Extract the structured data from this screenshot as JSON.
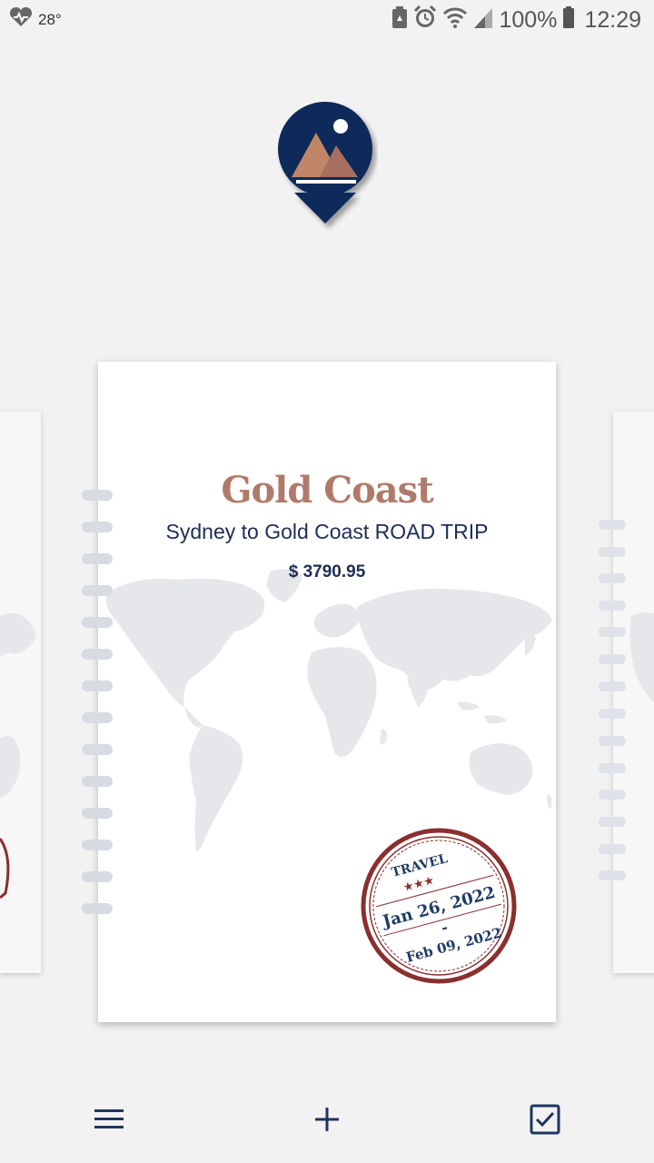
{
  "status_bar": {
    "temperature": "28°",
    "battery": "100%",
    "time": "12:29",
    "icons": [
      "heart-rate-icon",
      "recycle-icon",
      "alarm-icon",
      "wifi-icon",
      "signal-icon",
      "battery-icon"
    ]
  },
  "app": {
    "logo_icon": "mountain-pin-logo-icon",
    "brand_color": "#0f2b5a",
    "accent_color": "#b07a6a"
  },
  "trip_card": {
    "title": "Gold Coast",
    "subtitle": "Sydney to Gold Coast ROAD TRIP",
    "price": "$ 3790.95",
    "stamp": {
      "label": "TRAVEL",
      "start_date": "Jan 26, 2022",
      "separator": "-",
      "end_date": "Feb 09, 2022"
    }
  },
  "bottom_nav": {
    "menu_icon": "menu-icon",
    "add_icon": "plus-icon",
    "checklist_icon": "checkbox-icon"
  }
}
